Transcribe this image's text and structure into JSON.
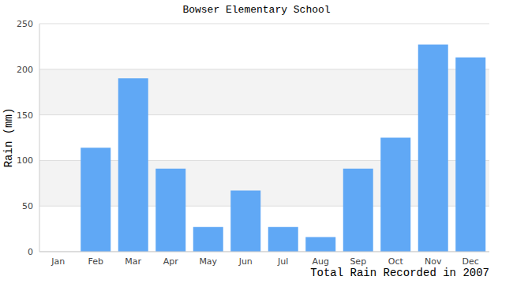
{
  "chart_data": {
    "type": "bar",
    "title": "Bowser Elementary School",
    "x_label": "Total Rain Recorded in 2007",
    "y_label": "Rain (mm)",
    "categories": [
      "Jan",
      "Feb",
      "Mar",
      "Apr",
      "May",
      "Jun",
      "Jul",
      "Aug",
      "Sep",
      "Oct",
      "Nov",
      "Dec"
    ],
    "values": [
      0,
      114,
      190,
      91,
      27,
      67,
      27,
      16,
      91,
      125,
      227,
      213
    ],
    "color": "#60a8f5",
    "ylim": [
      0,
      250
    ],
    "yticks": [
      0,
      50,
      100,
      150,
      200,
      250
    ],
    "grid": true
  }
}
